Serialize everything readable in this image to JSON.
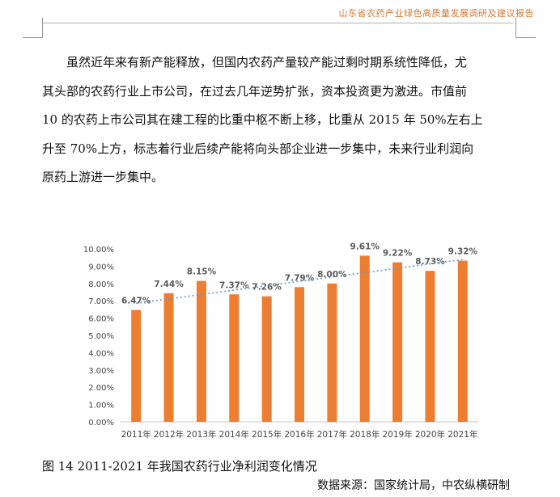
{
  "header": {
    "title": "山东省农药产业绿色高质量发展调研及建议报告"
  },
  "body": {
    "paragraph_lines": [
      "虽然近年来有新产能释放，但国内农药产量较产能过剩时期系统性降低，尤",
      "其头部的农药行业上市公司，在过去几年逆势扩张，资本投资更为激进。市值前",
      "10 的农药上市公司其在建工程的比重中枢不断上移，比重从 2015 年 50%左右上",
      "升至 70%上方，标志着行业后续产能将向头部企业进一步集中，未来行业利润向",
      "原药上游进一步集中。"
    ]
  },
  "chart_data": {
    "type": "bar",
    "categories": [
      "2011年",
      "2012年",
      "2013年",
      "2014年",
      "2015年",
      "2016年",
      "2017年",
      "2018年",
      "2019年",
      "2020年",
      "2021年"
    ],
    "values": [
      6.47,
      7.44,
      8.15,
      7.37,
      7.26,
      7.79,
      8.0,
      9.61,
      9.22,
      8.73,
      9.32
    ],
    "data_labels": [
      "6.47%",
      "7.44%",
      "8.15%",
      "7.37%",
      "7.26%",
      "7.79%",
      "8.00%",
      "9.61%",
      "9.22%",
      "8.73%",
      "9.32%"
    ],
    "y_tick_labels": [
      "0.00%",
      "1.00%",
      "2.00%",
      "3.00%",
      "4.00%",
      "5.00%",
      "6.00%",
      "7.00%",
      "8.00%",
      "9.00%",
      "10.00%"
    ],
    "ylim": [
      0,
      10
    ],
    "trendline": "linear",
    "grid": false,
    "bar_color": "#ed7d31",
    "trendline_color": "#5b9bd5"
  },
  "figure": {
    "caption": "图 14  2011-2021 年我国农药行业净利润变化情况",
    "source": "数据来源：国家统计局，中农纵横研制"
  }
}
